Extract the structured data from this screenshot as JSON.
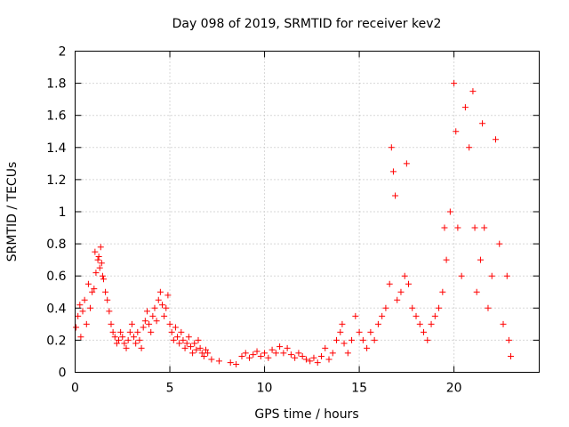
{
  "colors": {
    "series": "#ff0000",
    "axes": "#000000",
    "grid": "#b0b0b0"
  },
  "chart_data": {
    "type": "scatter",
    "title": "Day 098 of 2019, SRMTID for receiver kev2",
    "xlabel": "GPS time / hours",
    "ylabel": "SRMTID / TECUs",
    "xlim": [
      0,
      24.5
    ],
    "ylim": [
      0,
      2
    ],
    "xticks": [
      0,
      5,
      10,
      15,
      20
    ],
    "xtick_labels": [
      "0",
      "5",
      "10",
      "15",
      "20"
    ],
    "yticks": [
      0,
      0.2,
      0.4,
      0.6,
      0.8,
      1,
      1.2,
      1.4,
      1.6,
      1.8,
      2
    ],
    "ytick_labels": [
      "0",
      "0.2",
      "0.4",
      "0.6",
      "0.8",
      "1",
      "1.2",
      "1.4",
      "1.6",
      "1.8",
      "2"
    ],
    "grid": true,
    "marker": "+",
    "series": [
      {
        "name": "SRMTID",
        "points": [
          [
            0.05,
            0.28
          ],
          [
            0.15,
            0.35
          ],
          [
            0.25,
            0.42
          ],
          [
            0.3,
            0.22
          ],
          [
            0.4,
            0.38
          ],
          [
            0.5,
            0.45
          ],
          [
            0.6,
            0.3
          ],
          [
            0.7,
            0.55
          ],
          [
            0.8,
            0.4
          ],
          [
            0.9,
            0.5
          ],
          [
            1.0,
            0.52
          ],
          [
            1.05,
            0.75
          ],
          [
            1.1,
            0.62
          ],
          [
            1.2,
            0.7
          ],
          [
            1.25,
            0.72
          ],
          [
            1.3,
            0.65
          ],
          [
            1.35,
            0.78
          ],
          [
            1.4,
            0.68
          ],
          [
            1.45,
            0.6
          ],
          [
            1.5,
            0.58
          ],
          [
            1.6,
            0.5
          ],
          [
            1.7,
            0.45
          ],
          [
            1.8,
            0.38
          ],
          [
            1.9,
            0.3
          ],
          [
            2.0,
            0.25
          ],
          [
            2.1,
            0.22
          ],
          [
            2.2,
            0.18
          ],
          [
            2.3,
            0.2
          ],
          [
            2.4,
            0.25
          ],
          [
            2.5,
            0.22
          ],
          [
            2.6,
            0.18
          ],
          [
            2.7,
            0.15
          ],
          [
            2.8,
            0.2
          ],
          [
            2.9,
            0.25
          ],
          [
            3.0,
            0.3
          ],
          [
            3.1,
            0.22
          ],
          [
            3.2,
            0.18
          ],
          [
            3.3,
            0.25
          ],
          [
            3.4,
            0.2
          ],
          [
            3.5,
            0.15
          ],
          [
            3.6,
            0.28
          ],
          [
            3.7,
            0.32
          ],
          [
            3.8,
            0.38
          ],
          [
            3.9,
            0.3
          ],
          [
            4.0,
            0.25
          ],
          [
            4.1,
            0.35
          ],
          [
            4.2,
            0.4
          ],
          [
            4.3,
            0.32
          ],
          [
            4.4,
            0.45
          ],
          [
            4.5,
            0.5
          ],
          [
            4.6,
            0.42
          ],
          [
            4.7,
            0.35
          ],
          [
            4.8,
            0.4
          ],
          [
            4.9,
            0.48
          ],
          [
            5.0,
            0.3
          ],
          [
            5.1,
            0.25
          ],
          [
            5.2,
            0.2
          ],
          [
            5.3,
            0.28
          ],
          [
            5.4,
            0.22
          ],
          [
            5.5,
            0.18
          ],
          [
            5.6,
            0.25
          ],
          [
            5.7,
            0.2
          ],
          [
            5.8,
            0.15
          ],
          [
            5.9,
            0.18
          ],
          [
            6.0,
            0.22
          ],
          [
            6.1,
            0.16
          ],
          [
            6.2,
            0.12
          ],
          [
            6.3,
            0.18
          ],
          [
            6.4,
            0.14
          ],
          [
            6.5,
            0.2
          ],
          [
            6.6,
            0.15
          ],
          [
            6.7,
            0.12
          ],
          [
            6.8,
            0.1
          ],
          [
            6.9,
            0.14
          ],
          [
            7.0,
            0.12
          ],
          [
            7.2,
            0.08
          ],
          [
            7.6,
            0.07
          ],
          [
            8.2,
            0.06
          ],
          [
            8.5,
            0.05
          ],
          [
            8.8,
            0.1
          ],
          [
            9.0,
            0.12
          ],
          [
            9.2,
            0.09
          ],
          [
            9.4,
            0.11
          ],
          [
            9.6,
            0.13
          ],
          [
            9.8,
            0.1
          ],
          [
            10.0,
            0.12
          ],
          [
            10.2,
            0.09
          ],
          [
            10.4,
            0.14
          ],
          [
            10.6,
            0.12
          ],
          [
            10.8,
            0.16
          ],
          [
            11.0,
            0.12
          ],
          [
            11.2,
            0.15
          ],
          [
            11.4,
            0.11
          ],
          [
            11.6,
            0.09
          ],
          [
            11.8,
            0.12
          ],
          [
            12.0,
            0.1
          ],
          [
            12.2,
            0.08
          ],
          [
            12.4,
            0.07
          ],
          [
            12.6,
            0.09
          ],
          [
            12.8,
            0.06
          ],
          [
            13.0,
            0.1
          ],
          [
            13.2,
            0.15
          ],
          [
            13.4,
            0.08
          ],
          [
            13.6,
            0.12
          ],
          [
            13.8,
            0.2
          ],
          [
            14.0,
            0.25
          ],
          [
            14.1,
            0.3
          ],
          [
            14.2,
            0.18
          ],
          [
            14.4,
            0.12
          ],
          [
            14.6,
            0.2
          ],
          [
            14.8,
            0.35
          ],
          [
            15.0,
            0.25
          ],
          [
            15.2,
            0.2
          ],
          [
            15.4,
            0.15
          ],
          [
            15.6,
            0.25
          ],
          [
            15.8,
            0.2
          ],
          [
            16.0,
            0.3
          ],
          [
            16.2,
            0.35
          ],
          [
            16.4,
            0.4
          ],
          [
            16.6,
            0.55
          ],
          [
            16.7,
            1.4
          ],
          [
            16.8,
            1.25
          ],
          [
            16.9,
            1.1
          ],
          [
            17.0,
            0.45
          ],
          [
            17.2,
            0.5
          ],
          [
            17.4,
            0.6
          ],
          [
            17.5,
            1.3
          ],
          [
            17.6,
            0.55
          ],
          [
            17.8,
            0.4
          ],
          [
            18.0,
            0.35
          ],
          [
            18.2,
            0.3
          ],
          [
            18.4,
            0.25
          ],
          [
            18.6,
            0.2
          ],
          [
            18.8,
            0.3
          ],
          [
            19.0,
            0.35
          ],
          [
            19.2,
            0.4
          ],
          [
            19.4,
            0.5
          ],
          [
            19.5,
            0.9
          ],
          [
            19.6,
            0.7
          ],
          [
            19.8,
            1.0
          ],
          [
            20.0,
            1.8
          ],
          [
            20.1,
            1.5
          ],
          [
            20.2,
            0.9
          ],
          [
            20.4,
            0.6
          ],
          [
            20.6,
            1.65
          ],
          [
            20.8,
            1.4
          ],
          [
            21.0,
            1.75
          ],
          [
            21.1,
            0.9
          ],
          [
            21.2,
            0.5
          ],
          [
            21.4,
            0.7
          ],
          [
            21.5,
            1.55
          ],
          [
            21.6,
            0.9
          ],
          [
            21.8,
            0.4
          ],
          [
            22.0,
            0.6
          ],
          [
            22.2,
            1.45
          ],
          [
            22.4,
            0.8
          ],
          [
            22.6,
            0.3
          ],
          [
            22.8,
            0.6
          ],
          [
            22.9,
            0.2
          ],
          [
            23.0,
            0.1
          ]
        ]
      }
    ]
  }
}
